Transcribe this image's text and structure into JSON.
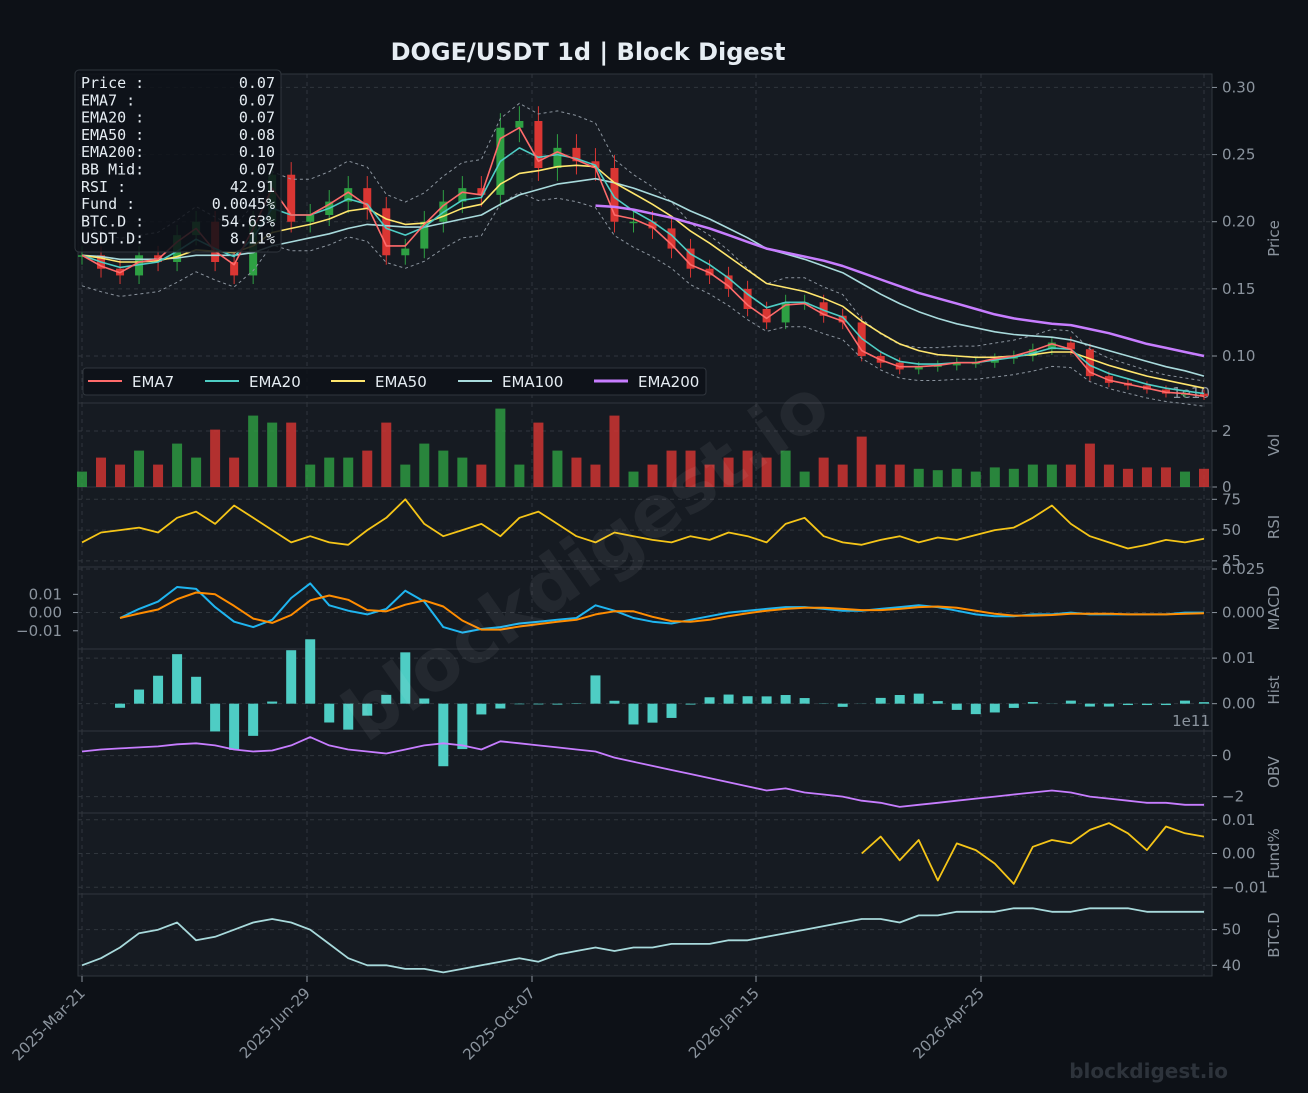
{
  "title": "DOGE/USDT  1d  |  Block Digest",
  "watermark": "blockdigest.io",
  "footer": "blockdigest.io",
  "colors": {
    "bg": "#0d1117",
    "panel": "#161b22",
    "grid": "#30363d",
    "text": "#8b949e",
    "title": "#e6edf3",
    "up": "#2ea043",
    "down": "#da3633",
    "ema7": "#ff6b6b",
    "ema20": "#4ecdc4",
    "ema50": "#ffe66d",
    "ema100": "#a8dadc",
    "ema200": "#c77dff",
    "rsi": "#f5c518",
    "macd": "#1fb5f0",
    "signal": "#ff8c00",
    "hist": "#4ecdc4",
    "obv": "#c77dff",
    "fund": "#f5c518",
    "btcd": "#a8dadc",
    "bb": "#8b949e"
  },
  "info_box": [
    {
      "k": "Price :",
      "v": "0.07"
    },
    {
      "k": "EMA7  :",
      "v": "0.07"
    },
    {
      "k": "EMA20 :",
      "v": "0.07"
    },
    {
      "k": "EMA50 :",
      "v": "0.08"
    },
    {
      "k": "EMA200:",
      "v": "0.10"
    },
    {
      "k": "BB Mid:",
      "v": "0.07"
    },
    {
      "k": "RSI   :",
      "v": "42.91"
    },
    {
      "k": "Fund  :",
      "v": "0.0045%"
    },
    {
      "k": "BTC.D :",
      "v": "54.63%"
    },
    {
      "k": "USDT.D:",
      "v": "8.11%"
    }
  ],
  "legend": [
    "EMA7",
    "EMA20",
    "EMA50",
    "EMA100",
    "EMA200"
  ],
  "x_ticks": [
    "2025-Mar-21",
    "2025-Jun-29",
    "2025-Oct-07",
    "2026-Jan-15",
    "2026-Apr-25"
  ],
  "panels": {
    "price": {
      "ylabel": "Price",
      "ticks": [
        "0.10",
        "0.15",
        "0.20",
        "0.25",
        "0.30"
      ],
      "corner_label": "1e10"
    },
    "vol": {
      "ylabel": "Vol",
      "ticks": [
        "0",
        "2"
      ]
    },
    "rsi": {
      "ylabel": "RSI",
      "ticks": [
        "25",
        "50",
        "75"
      ]
    },
    "macd": {
      "ylabel": "MACD",
      "ticks_right": [
        "0.000",
        "0.025"
      ],
      "ticks_left": [
        "0.01",
        "0.00",
        "−0.01"
      ]
    },
    "hist": {
      "ylabel": "Hist",
      "ticks": [
        "0.00",
        "0.01"
      ],
      "corner_label": "1e11"
    },
    "obv": {
      "ylabel": "OBV",
      "ticks": [
        "0",
        "−2"
      ]
    },
    "fund": {
      "ylabel": "Fund%",
      "ticks": [
        "−0.01",
        "0.00",
        "0.01"
      ]
    },
    "btcd": {
      "ylabel": "BTC.D",
      "ticks": [
        "40",
        "50"
      ]
    }
  },
  "chart_data": {
    "type": "line",
    "x_range": [
      "2025-03-21",
      "2026-06-27"
    ],
    "series_keys": {
      "price_close": [
        0.175,
        0.165,
        0.16,
        0.175,
        0.17,
        0.19,
        0.2,
        0.17,
        0.16,
        0.2,
        0.235,
        0.2,
        0.205,
        0.215,
        0.225,
        0.21,
        0.175,
        0.18,
        0.2,
        0.215,
        0.225,
        0.22,
        0.27,
        0.275,
        0.24,
        0.255,
        0.245,
        0.24,
        0.2,
        0.2,
        0.195,
        0.18,
        0.165,
        0.16,
        0.15,
        0.135,
        0.125,
        0.14,
        0.14,
        0.13,
        0.125,
        0.1,
        0.095,
        0.09,
        0.092,
        0.093,
        0.095,
        0.095,
        0.098,
        0.1,
        0.105,
        0.11,
        0.105,
        0.085,
        0.08,
        0.078,
        0.075,
        0.072,
        0.072,
        0.07
      ],
      "ema7": [
        0.175,
        0.167,
        0.162,
        0.17,
        0.172,
        0.185,
        0.195,
        0.178,
        0.168,
        0.195,
        0.225,
        0.205,
        0.205,
        0.213,
        0.222,
        0.212,
        0.182,
        0.182,
        0.198,
        0.212,
        0.222,
        0.22,
        0.262,
        0.27,
        0.245,
        0.252,
        0.246,
        0.24,
        0.205,
        0.202,
        0.196,
        0.183,
        0.168,
        0.162,
        0.152,
        0.138,
        0.128,
        0.138,
        0.139,
        0.131,
        0.126,
        0.104,
        0.097,
        0.092,
        0.092,
        0.093,
        0.095,
        0.095,
        0.098,
        0.1,
        0.104,
        0.109,
        0.105,
        0.088,
        0.082,
        0.079,
        0.076,
        0.073,
        0.072,
        0.07
      ],
      "ema20": [
        0.175,
        0.17,
        0.166,
        0.168,
        0.17,
        0.178,
        0.187,
        0.18,
        0.174,
        0.188,
        0.21,
        0.205,
        0.205,
        0.21,
        0.217,
        0.213,
        0.195,
        0.19,
        0.196,
        0.207,
        0.216,
        0.218,
        0.245,
        0.255,
        0.248,
        0.25,
        0.247,
        0.242,
        0.218,
        0.208,
        0.2,
        0.19,
        0.176,
        0.168,
        0.158,
        0.146,
        0.136,
        0.14,
        0.14,
        0.134,
        0.129,
        0.113,
        0.103,
        0.096,
        0.094,
        0.094,
        0.095,
        0.095,
        0.097,
        0.099,
        0.102,
        0.106,
        0.105,
        0.093,
        0.087,
        0.083,
        0.079,
        0.076,
        0.074,
        0.072
      ],
      "ema50": [
        0.175,
        0.173,
        0.17,
        0.17,
        0.171,
        0.174,
        0.179,
        0.178,
        0.177,
        0.182,
        0.192,
        0.195,
        0.198,
        0.202,
        0.208,
        0.21,
        0.202,
        0.198,
        0.199,
        0.204,
        0.21,
        0.213,
        0.228,
        0.236,
        0.238,
        0.241,
        0.242,
        0.241,
        0.229,
        0.221,
        0.213,
        0.204,
        0.193,
        0.184,
        0.174,
        0.164,
        0.154,
        0.151,
        0.148,
        0.143,
        0.137,
        0.126,
        0.117,
        0.109,
        0.104,
        0.101,
        0.1,
        0.099,
        0.099,
        0.1,
        0.101,
        0.103,
        0.103,
        0.098,
        0.093,
        0.089,
        0.085,
        0.082,
        0.079,
        0.076
      ],
      "ema100": [
        0.175,
        0.174,
        0.172,
        0.172,
        0.172,
        0.173,
        0.175,
        0.175,
        0.175,
        0.177,
        0.182,
        0.185,
        0.188,
        0.191,
        0.195,
        0.198,
        0.197,
        0.196,
        0.196,
        0.199,
        0.202,
        0.205,
        0.213,
        0.22,
        0.224,
        0.228,
        0.23,
        0.232,
        0.229,
        0.225,
        0.22,
        0.215,
        0.208,
        0.202,
        0.195,
        0.188,
        0.18,
        0.176,
        0.172,
        0.167,
        0.162,
        0.154,
        0.146,
        0.139,
        0.133,
        0.128,
        0.124,
        0.121,
        0.118,
        0.116,
        0.115,
        0.114,
        0.112,
        0.108,
        0.104,
        0.1,
        0.096,
        0.092,
        0.089,
        0.085
      ],
      "ema200": [
        null,
        null,
        null,
        null,
        null,
        null,
        null,
        null,
        null,
        null,
        null,
        null,
        null,
        null,
        null,
        null,
        null,
        null,
        null,
        null,
        null,
        null,
        null,
        null,
        null,
        null,
        null,
        0.212,
        0.211,
        0.209,
        0.206,
        0.203,
        0.199,
        0.195,
        0.19,
        0.185,
        0.18,
        0.177,
        0.174,
        0.171,
        0.167,
        0.162,
        0.157,
        0.152,
        0.147,
        0.143,
        0.139,
        0.135,
        0.131,
        0.128,
        0.126,
        0.124,
        0.123,
        0.12,
        0.117,
        0.113,
        0.109,
        0.106,
        0.103,
        0.1
      ],
      "rsi": [
        40,
        48,
        50,
        52,
        48,
        60,
        65,
        55,
        70,
        60,
        50,
        40,
        45,
        40,
        38,
        50,
        60,
        75,
        55,
        45,
        50,
        55,
        45,
        60,
        65,
        55,
        45,
        40,
        48,
        45,
        42,
        40,
        45,
        42,
        48,
        45,
        40,
        55,
        60,
        45,
        40,
        38,
        42,
        45,
        40,
        44,
        42,
        46,
        50,
        52,
        60,
        70,
        55,
        45,
        40,
        35,
        38,
        42,
        40,
        43
      ],
      "macd": [
        null,
        null,
        -0.003,
        0.002,
        0.006,
        0.014,
        0.013,
        0.003,
        -0.005,
        -0.008,
        -0.004,
        0.008,
        0.016,
        0.004,
        0.001,
        -0.001,
        0.002,
        0.012,
        0.006,
        -0.008,
        -0.011,
        -0.009,
        -0.008,
        -0.006,
        -0.005,
        -0.004,
        -0.003,
        0.004,
        0.001,
        -0.003,
        -0.005,
        -0.006,
        -0.004,
        -0.002,
        0.0,
        0.001,
        0.002,
        0.003,
        0.003,
        0.002,
        0.001,
        0.001,
        0.002,
        0.003,
        0.004,
        0.003,
        0.001,
        -0.001,
        -0.002,
        -0.002,
        -0.001,
        -0.001,
        0.0,
        -0.001,
        -0.001,
        -0.001,
        -0.001,
        -0.001,
        0.0,
        0.0
      ],
      "obv": [
        0.2,
        0.3,
        0.35,
        0.4,
        0.45,
        0.55,
        0.6,
        0.5,
        0.3,
        0.2,
        0.25,
        0.5,
        0.9,
        0.5,
        0.3,
        0.2,
        0.1,
        0.3,
        0.5,
        0.6,
        0.5,
        0.3,
        0.7,
        0.6,
        0.5,
        0.4,
        0.3,
        0.2,
        -0.1,
        -0.3,
        -0.5,
        -0.7,
        -0.9,
        -1.1,
        -1.3,
        -1.5,
        -1.7,
        -1.6,
        -1.8,
        -1.9,
        -2.0,
        -2.2,
        -2.3,
        -2.5,
        -2.4,
        -2.3,
        -2.2,
        -2.1,
        -2.0,
        -1.9,
        -1.8,
        -1.7,
        -1.8,
        -2.0,
        -2.1,
        -2.2,
        -2.3,
        -2.3,
        -2.4,
        -2.4
      ],
      "fund": [
        null,
        null,
        null,
        null,
        null,
        null,
        null,
        null,
        null,
        null,
        null,
        null,
        null,
        null,
        null,
        null,
        null,
        null,
        null,
        null,
        null,
        null,
        null,
        null,
        null,
        null,
        null,
        null,
        null,
        null,
        null,
        null,
        null,
        null,
        null,
        null,
        null,
        null,
        null,
        null,
        null,
        0.0,
        0.005,
        -0.002,
        0.004,
        -0.008,
        0.003,
        0.001,
        -0.003,
        -0.009,
        0.002,
        0.004,
        0.003,
        0.007,
        0.009,
        0.006,
        0.001,
        0.008,
        0.006,
        0.005
      ],
      "btcd": [
        40,
        42,
        45,
        49,
        50,
        52,
        47,
        48,
        50,
        52,
        53,
        52,
        50,
        46,
        42,
        40,
        40,
        39,
        39,
        38,
        39,
        40,
        41,
        42,
        41,
        43,
        44,
        45,
        44,
        45,
        45,
        46,
        46,
        46,
        47,
        47,
        48,
        49,
        50,
        51,
        52,
        53,
        53,
        52,
        54,
        54,
        55,
        55,
        55,
        56,
        56,
        55,
        55,
        56,
        56,
        56,
        55,
        55,
        55,
        55
      ]
    }
  }
}
